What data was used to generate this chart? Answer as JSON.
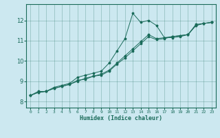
{
  "xlabel": "Humidex (Indice chaleur)",
  "ylabel": "",
  "bg_color": "#cce8f0",
  "line_color": "#1a6b5a",
  "xlim": [
    -0.5,
    23.5
  ],
  "ylim": [
    7.7,
    12.8
  ],
  "xticks": [
    0,
    1,
    2,
    3,
    4,
    5,
    6,
    7,
    8,
    9,
    10,
    11,
    12,
    13,
    14,
    15,
    16,
    17,
    18,
    19,
    20,
    21,
    22,
    23
  ],
  "yticks": [
    8,
    9,
    10,
    11,
    12
  ],
  "series1_x": [
    0,
    1,
    2,
    3,
    4,
    5,
    6,
    7,
    8,
    9,
    10,
    11,
    12,
    13,
    14,
    15,
    16,
    17,
    18,
    19,
    20,
    21,
    22,
    23
  ],
  "series1_y": [
    8.3,
    8.5,
    8.5,
    8.7,
    8.8,
    8.9,
    9.2,
    9.3,
    9.4,
    9.5,
    9.9,
    10.5,
    11.1,
    12.35,
    11.9,
    12.0,
    11.75,
    11.15,
    11.15,
    11.2,
    11.3,
    11.8,
    11.85,
    11.9
  ],
  "series2_x": [
    0,
    1,
    2,
    3,
    4,
    5,
    6,
    7,
    8,
    9,
    10,
    11,
    12,
    13,
    14,
    15,
    16,
    17,
    18,
    19,
    20,
    21,
    22,
    23
  ],
  "series2_y": [
    8.3,
    8.45,
    8.5,
    8.65,
    8.75,
    8.85,
    9.05,
    9.1,
    9.25,
    9.35,
    9.55,
    9.9,
    10.25,
    10.6,
    10.95,
    11.3,
    11.1,
    11.15,
    11.2,
    11.25,
    11.3,
    11.75,
    11.85,
    11.9
  ],
  "series3_x": [
    0,
    1,
    2,
    3,
    4,
    5,
    6,
    7,
    8,
    9,
    10,
    11,
    12,
    13,
    14,
    15,
    16,
    17,
    18,
    19,
    20,
    21,
    22,
    23
  ],
  "series3_y": [
    8.3,
    8.45,
    8.5,
    8.65,
    8.75,
    8.85,
    9.0,
    9.15,
    9.25,
    9.3,
    9.5,
    9.85,
    10.15,
    10.5,
    10.85,
    11.2,
    11.05,
    11.1,
    11.2,
    11.25,
    11.3,
    11.75,
    11.85,
    11.9
  ]
}
